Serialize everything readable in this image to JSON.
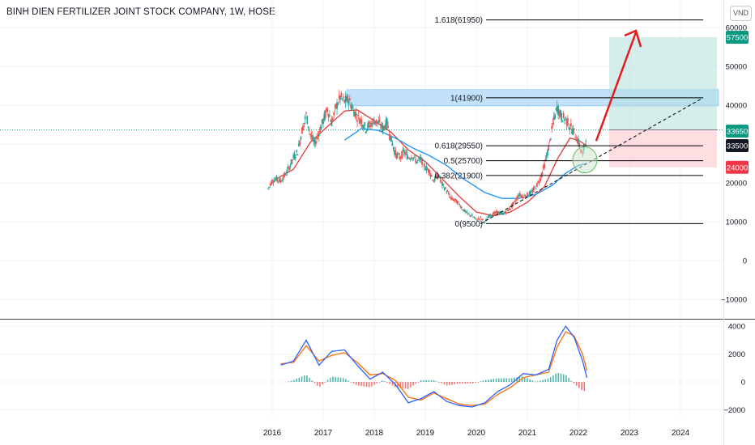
{
  "header": {
    "title": "BINH DIEN FERTILIZER JOINT STOCK COMPANY, 1W, HOSE",
    "currency": "VND"
  },
  "colors": {
    "price_bar_up": "#26a69a",
    "price_bar_down": "#ef5350",
    "ema_fast": "#e53935",
    "ema_slow": "#2196f3",
    "macd_line": "#2962ff",
    "signal_line": "#ff6d00",
    "fib_line": "#000000",
    "fib_zone": "#90caf9",
    "target_zone": "#b2dfdb",
    "stop_zone": "#ffcdd2",
    "arrow": "#e41c1c",
    "trendline": "#000000"
  },
  "chart_data": [
    {
      "type": "candlestick",
      "x_axis": {
        "ticks": [
          "2016",
          "2017",
          "2018",
          "2019",
          "2020",
          "2021",
          "2022",
          "2023",
          "2024"
        ]
      },
      "y_axis": {
        "ticks": [
          60000,
          50000,
          40000,
          30000,
          20000,
          10000,
          0,
          -10000
        ],
        "ylim": [
          -12000,
          65000
        ]
      },
      "series": [
        {
          "kind": "price",
          "points": [
            [
              "2015-12",
              18500
            ],
            [
              "2016-01",
              20500
            ],
            [
              "2016-02",
              21000
            ],
            [
              "2016-03",
              20500
            ],
            [
              "2016-04",
              22000
            ],
            [
              "2016-05",
              24000
            ],
            [
              "2016-06",
              26500
            ],
            [
              "2016-07",
              28000
            ],
            [
              "2016-08",
              33500
            ],
            [
              "2016-09",
              37500
            ],
            [
              "2016-10",
              32500
            ],
            [
              "2016-11",
              30000
            ],
            [
              "2016-12",
              33000
            ],
            [
              "2017-01",
              36000
            ],
            [
              "2017-02",
              39000
            ],
            [
              "2017-03",
              35500
            ],
            [
              "2017-04",
              39500
            ],
            [
              "2017-05",
              42000
            ],
            [
              "2017-06",
              41000
            ],
            [
              "2017-07",
              41500
            ],
            [
              "2017-08",
              39000
            ],
            [
              "2017-09",
              37000
            ],
            [
              "2017-10",
              36000
            ],
            [
              "2017-11",
              34000
            ],
            [
              "2017-12",
              35000
            ],
            [
              "2018-01",
              36000
            ],
            [
              "2018-02",
              35500
            ],
            [
              "2018-03",
              34000
            ],
            [
              "2018-04",
              35500
            ],
            [
              "2018-05",
              31000
            ],
            [
              "2018-06",
              27500
            ],
            [
              "2018-07",
              26500
            ],
            [
              "2018-08",
              28000
            ],
            [
              "2018-09",
              26500
            ],
            [
              "2018-10",
              27000
            ],
            [
              "2018-11",
              25500
            ],
            [
              "2018-12",
              26000
            ],
            [
              "2019-01",
              24000
            ],
            [
              "2019-02",
              23000
            ],
            [
              "2019-03",
              20500
            ],
            [
              "2019-04",
              22000
            ],
            [
              "2019-05",
              19500
            ],
            [
              "2019-06",
              18000
            ],
            [
              "2019-07",
              16000
            ],
            [
              "2019-08",
              15500
            ],
            [
              "2019-09",
              14500
            ],
            [
              "2019-10",
              13000
            ],
            [
              "2019-11",
              12000
            ],
            [
              "2019-12",
              11500
            ],
            [
              "2020-01",
              10500
            ],
            [
              "2020-02",
              11000
            ],
            [
              "2020-03",
              9800
            ],
            [
              "2020-04",
              11500
            ],
            [
              "2020-05",
              12000
            ],
            [
              "2020-06",
              12500
            ],
            [
              "2020-07",
              12000
            ],
            [
              "2020-08",
              12500
            ],
            [
              "2020-09",
              13500
            ],
            [
              "2020-10",
              15000
            ],
            [
              "2020-11",
              17000
            ],
            [
              "2020-12",
              16500
            ],
            [
              "2021-01",
              17000
            ],
            [
              "2021-02",
              17500
            ],
            [
              "2021-03",
              19000
            ],
            [
              "2021-04",
              21000
            ],
            [
              "2021-05",
              24500
            ],
            [
              "2021-06",
              29000
            ],
            [
              "2021-07",
              35000
            ],
            [
              "2021-08",
              39500
            ],
            [
              "2021-09",
              37000
            ],
            [
              "2021-10",
              36500
            ],
            [
              "2021-11",
              34500
            ],
            [
              "2021-12",
              33000
            ],
            [
              "2022-01",
              30500
            ],
            [
              "2022-02",
              27000
            ],
            [
              "2022-03",
              33500
            ]
          ]
        },
        {
          "kind": "ema_fast",
          "points": [
            [
              "2016-02",
              21000
            ],
            [
              "2016-06",
              23500
            ],
            [
              "2016-10",
              30500
            ],
            [
              "2017-02",
              34500
            ],
            [
              "2017-06",
              38500
            ],
            [
              "2017-09",
              38800
            ],
            [
              "2018-01",
              36000
            ],
            [
              "2018-05",
              33000
            ],
            [
              "2018-09",
              28500
            ],
            [
              "2019-01",
              25500
            ],
            [
              "2019-05",
              21000
            ],
            [
              "2019-09",
              16500
            ],
            [
              "2020-01",
              12500
            ],
            [
              "2020-05",
              11500
            ],
            [
              "2020-09",
              12500
            ],
            [
              "2021-01",
              15000
            ],
            [
              "2021-05",
              19000
            ],
            [
              "2021-08",
              26000
            ],
            [
              "2021-11",
              31500
            ],
            [
              "2022-01",
              31000
            ],
            [
              "2022-03",
              29500
            ]
          ]
        },
        {
          "kind": "ema_slow",
          "points": [
            [
              "2017-06",
              31000
            ],
            [
              "2017-10",
              34000
            ],
            [
              "2018-02",
              33500
            ],
            [
              "2018-06",
              31500
            ],
            [
              "2018-10",
              29000
            ],
            [
              "2019-02",
              27000
            ],
            [
              "2019-06",
              24500
            ],
            [
              "2019-10",
              21000
            ],
            [
              "2020-03",
              17500
            ],
            [
              "2020-07",
              16000
            ],
            [
              "2020-11",
              16000
            ],
            [
              "2021-03",
              17000
            ],
            [
              "2021-07",
              19500
            ],
            [
              "2021-10",
              22500
            ],
            [
              "2022-01",
              24500
            ],
            [
              "2022-03",
              25000
            ]
          ]
        }
      ],
      "fibonacci": [
        {
          "label": "1.618(61950)",
          "value": 61950
        },
        {
          "label": "1(41900)",
          "value": 41900
        },
        {
          "label": "0.618(29550)",
          "value": 29550
        },
        {
          "label": "0.5(25700)",
          "value": 25700
        },
        {
          "label": "0.382(21900)",
          "value": 21900
        },
        {
          "label": "0(9500)",
          "value": 9500
        }
      ],
      "price_labels": [
        {
          "text": "57500",
          "value": 57500,
          "color": "#089981"
        },
        {
          "text": "33650",
          "value": 33650,
          "color": "#089981"
        },
        {
          "text": "33500",
          "value": 33500,
          "color": "#131722"
        },
        {
          "text": "24000",
          "value": 24000,
          "color": "#f23645"
        }
      ],
      "position": {
        "entry": 33650,
        "target": 57500,
        "stop": 24000,
        "start": "2022-06",
        "end": "2024-12"
      },
      "resistance_zone": {
        "from": 39800,
        "to": 44000
      },
      "trendline": {
        "from": [
          "2020-02",
          9500
        ],
        "to": [
          "2024-06",
          41900
        ]
      },
      "arrow": {
        "from": [
          "2022-04",
          30800
        ],
        "to": [
          "2023-01",
          61950
        ]
      }
    },
    {
      "type": "macd",
      "y_axis": {
        "ticks": [
          4000,
          2000,
          0,
          -2000
        ],
        "ylim": [
          -2600,
          4500
        ]
      },
      "series": [
        {
          "kind": "macd",
          "points": [
            [
              "2016-03",
              1200
            ],
            [
              "2016-06",
              1500
            ],
            [
              "2016-09",
              3000
            ],
            [
              "2016-12",
              1200
            ],
            [
              "2017-03",
              2200
            ],
            [
              "2017-06",
              2300
            ],
            [
              "2017-09",
              1200
            ],
            [
              "2017-12",
              200
            ],
            [
              "2018-03",
              700
            ],
            [
              "2018-06",
              -200
            ],
            [
              "2018-09",
              -1500
            ],
            [
              "2018-12",
              -1200
            ],
            [
              "2019-03",
              -700
            ],
            [
              "2019-06",
              -1400
            ],
            [
              "2019-09",
              -1700
            ],
            [
              "2019-12",
              -1800
            ],
            [
              "2020-03",
              -1500
            ],
            [
              "2020-06",
              -700
            ],
            [
              "2020-09",
              -200
            ],
            [
              "2020-12",
              600
            ],
            [
              "2021-03",
              500
            ],
            [
              "2021-06",
              900
            ],
            [
              "2021-08",
              3000
            ],
            [
              "2021-10",
              4000
            ],
            [
              "2021-12",
              3200
            ],
            [
              "2022-02",
              1500
            ],
            [
              "2022-03",
              300
            ]
          ]
        },
        {
          "kind": "signal",
          "points": [
            [
              "2016-03",
              1300
            ],
            [
              "2016-06",
              1400
            ],
            [
              "2016-09",
              2600
            ],
            [
              "2016-12",
              1500
            ],
            [
              "2017-03",
              1900
            ],
            [
              "2017-06",
              2100
            ],
            [
              "2017-09",
              1400
            ],
            [
              "2017-12",
              500
            ],
            [
              "2018-03",
              600
            ],
            [
              "2018-06",
              100
            ],
            [
              "2018-09",
              -1100
            ],
            [
              "2018-12",
              -1300
            ],
            [
              "2019-03",
              -800
            ],
            [
              "2019-06",
              -1200
            ],
            [
              "2019-09",
              -1600
            ],
            [
              "2019-12",
              -1700
            ],
            [
              "2020-03",
              -1600
            ],
            [
              "2020-06",
              -900
            ],
            [
              "2020-09",
              -400
            ],
            [
              "2020-12",
              300
            ],
            [
              "2021-03",
              500
            ],
            [
              "2021-06",
              700
            ],
            [
              "2021-08",
              2500
            ],
            [
              "2021-10",
              3600
            ],
            [
              "2021-12",
              3300
            ],
            [
              "2022-02",
              2000
            ],
            [
              "2022-03",
              800
            ]
          ]
        }
      ]
    }
  ]
}
